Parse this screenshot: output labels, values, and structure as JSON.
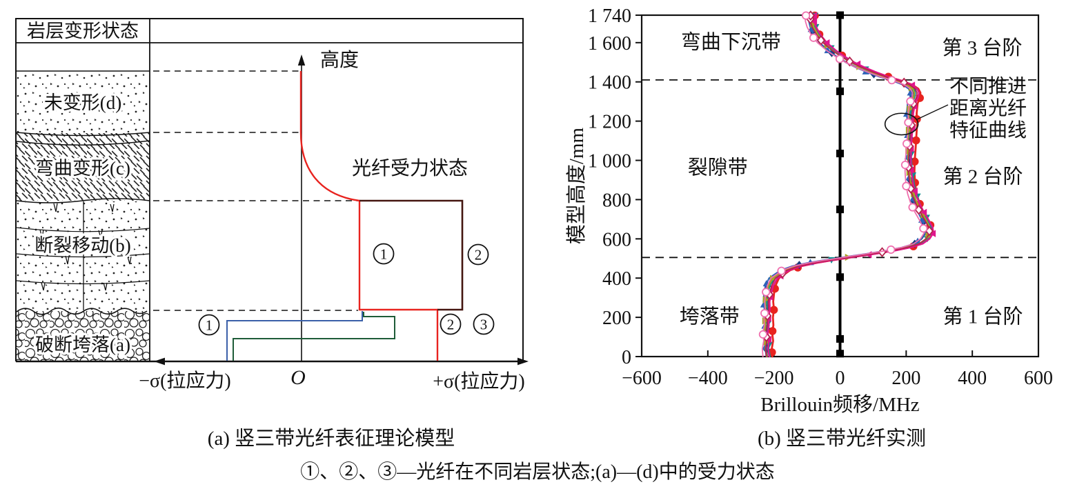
{
  "colors": {
    "red_curve": "#e8231f",
    "dark_rect": "#44150f",
    "blue_step": "#3a5fa8",
    "green_step": "#1e5c38"
  },
  "panel_a": {
    "caption": "(a) 竖三带光纤表征理论模型",
    "header": "岩层变形状态",
    "layers": [
      {
        "label": "未变形(d)"
      },
      {
        "label": "弯曲变形(c)"
      },
      {
        "label": "断裂移动(b)"
      },
      {
        "label": "破断垮落(a)"
      }
    ],
    "height_axis_label": "高度",
    "origin_label": "O",
    "x_neg_label": "−σ(拉应力)",
    "x_pos_label": "+σ(拉应力)",
    "fiber_state_label": "光纤受力状态",
    "badges": {
      "step_left": "1",
      "rect_inner": "1",
      "rect_right": "2",
      "bottom_first": "2",
      "bottom_second": "3"
    }
  },
  "panel_b": {
    "caption": "(b) 竖三带光纤实测"
  },
  "footnote": "①、②、③—光纤在不同岩层状态;(a)—(d)中的受力状态",
  "chart_data": {
    "type": "line",
    "xlabel": "Brillouin频移/MHz",
    "ylabel": "模型高度/mm",
    "xlim": [
      -600,
      600
    ],
    "ylim": [
      0,
      1740
    ],
    "grid": false,
    "legend": "none",
    "x_ticks": [
      -600,
      -400,
      -200,
      0,
      200,
      400,
      600
    ],
    "x_tick_labels": [
      "−600",
      "−400",
      "−200",
      "0",
      "200",
      "400",
      "600"
    ],
    "y_ticks": [
      0,
      200,
      400,
      600,
      800,
      1000,
      1200,
      1400,
      1600,
      1740
    ],
    "y_tick_labels": [
      "0",
      "200",
      "400",
      "600",
      "800",
      "1 000",
      "1 200",
      "1 400",
      "1 600",
      "1 740"
    ],
    "zone_boundaries_mm": [
      1410,
      505
    ],
    "zone_labels": [
      {
        "text": "弯曲下沉带",
        "x": -330,
        "y": 1605
      },
      {
        "text": "裂隙带",
        "x": -370,
        "y": 965
      },
      {
        "text": "垮落带",
        "x": -395,
        "y": 205
      }
    ],
    "stage_labels": [
      {
        "text": "第 3 台阶",
        "x": 430,
        "y": 1575
      },
      {
        "text": "第 2 台阶",
        "x": 432,
        "y": 920
      },
      {
        "text": "第 1 台阶",
        "x": 432,
        "y": 205
      }
    ],
    "annotation": {
      "lines": [
        "不同推进",
        "距离光纤",
        "特征曲线"
      ],
      "ellipse": {
        "x": 186,
        "y": 1185,
        "rx_mhz": 50,
        "ry_mm": 55
      }
    },
    "baseline": {
      "x": 0,
      "marker": "square",
      "marker_heights_mm": [
        1740,
        1352,
        1035,
        750,
        405,
        90,
        15
      ]
    },
    "base_curve": {
      "height_mm": [
        0,
        40,
        80,
        120,
        160,
        200,
        240,
        280,
        320,
        360,
        400,
        440,
        462,
        478,
        490,
        500,
        511,
        524,
        540,
        556,
        575,
        600,
        630,
        660,
        700,
        740,
        780,
        830,
        880,
        940,
        1000,
        1060,
        1120,
        1180,
        1240,
        1290,
        1320,
        1345,
        1365,
        1385,
        1405,
        1425,
        1450,
        1475,
        1500,
        1530,
        1560,
        1600,
        1640,
        1680,
        1710,
        1740
      ],
      "shift_mhz": [
        -218,
        -221,
        -218,
        -222,
        -219,
        -221,
        -218,
        -220,
        -217,
        -212,
        -200,
        -165,
        -128,
        -82,
        -40,
        0,
        42,
        95,
        152,
        200,
        237,
        258,
        270,
        268,
        256,
        243,
        232,
        222,
        216,
        212,
        211,
        212,
        213,
        215,
        214,
        218,
        226,
        228,
        222,
        205,
        175,
        135,
        95,
        60,
        30,
        0,
        -25,
        -52,
        -70,
        -82,
        -87,
        -85
      ]
    },
    "series": [
      {
        "id": "curve-1",
        "color": "#e8231f",
        "marker": "circle",
        "fill": true,
        "dx": 13,
        "width": 2.8,
        "phase": 0.0
      },
      {
        "id": "curve-2",
        "color": "#1b3a7a",
        "marker": "diamond",
        "fill": true,
        "dx": -6,
        "width": 2.0,
        "phase": 0.9
      },
      {
        "id": "curve-3",
        "color": "#2e62b8",
        "marker": "triangle-up",
        "fill": true,
        "dx": -10,
        "width": 2.0,
        "phase": 1.7
      },
      {
        "id": "curve-4",
        "color": "#0e8f8f",
        "marker": "triangle-down",
        "fill": true,
        "dx": 4,
        "width": 2.0,
        "phase": 2.6
      },
      {
        "id": "curve-5",
        "color": "#a8a425",
        "marker": "triangle-right",
        "fill": true,
        "dx": -2,
        "width": 2.2,
        "phase": 3.4
      },
      {
        "id": "curve-6",
        "color": "#e0168c",
        "marker": "triangle-left",
        "fill": true,
        "dx": 8,
        "width": 2.4,
        "phase": 4.2
      },
      {
        "id": "curve-7",
        "color": "#b5224e",
        "marker": "diamond",
        "fill": false,
        "dx": 0,
        "width": 1.8,
        "phase": 5.0
      },
      {
        "id": "curve-8",
        "color": "#ef6fae",
        "marker": "circle",
        "fill": false,
        "dx": -13,
        "width": 1.8,
        "phase": 5.8
      }
    ]
  }
}
